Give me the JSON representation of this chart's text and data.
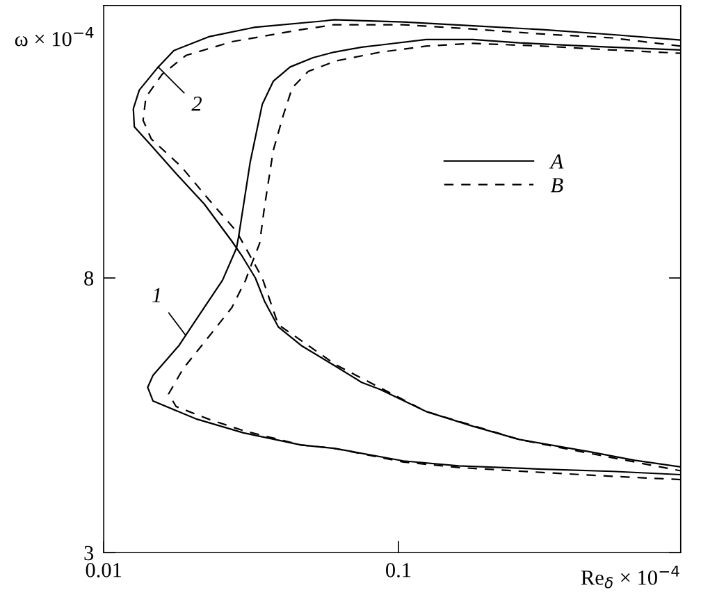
{
  "chart_data": {
    "type": "line",
    "xlabel": "Re$_{δ}$ × 10$^{−4}$",
    "ylabel": "ω × 10$^{−4}$",
    "log": "x",
    "xlim": [
      0.01,
      0.907
    ],
    "xticks": [
      0.01,
      0.1
    ],
    "ylim": [
      3,
      12.96
    ],
    "yticks": [
      3,
      8
    ],
    "grid": false,
    "legend": "right",
    "marker": "none",
    "annotations": [
      {
        "text": "1",
        "x": 0.019,
        "y": 6.95
      },
      {
        "text": "2",
        "x": 0.0153,
        "y": 11.84
      }
    ],
    "series": [
      {
        "name": "A",
        "color": "#000000",
        "line_style": "solid",
        "x": [
          0.907,
          0.53,
          0.308,
          0.16,
          0.104,
          0.0604,
          0.0468,
          0.0298,
          0.0207,
          0.0147,
          0.0141,
          0.0147,
          0.018,
          0.02,
          0.0253,
          0.0282,
          0.0287,
          0.0314,
          0.0345,
          0.0376,
          0.0429,
          0.0513,
          0.0604,
          0.075,
          0.0868,
          0.124,
          0.179,
          0.257,
          0.368,
          0.53,
          0.907
        ],
        "values": [
          4.42,
          4.48,
          4.52,
          4.58,
          4.67,
          4.9,
          4.96,
          5.18,
          5.43,
          5.76,
          6.01,
          6.23,
          6.77,
          7.14,
          7.96,
          8.54,
          8.76,
          10.11,
          11.16,
          11.58,
          11.84,
          12.01,
          12.11,
          12.2,
          12.24,
          12.34,
          12.34,
          12.28,
          12.24,
          12.2,
          12.15
        ]
      },
      {
        "name": "B",
        "color": "#000000",
        "line_style": "dashed",
        "x": [
          0.907,
          0.53,
          0.308,
          0.16,
          0.104,
          0.0604,
          0.0468,
          0.0298,
          0.0227,
          0.0176,
          0.0166,
          0.0186,
          0.0215,
          0.0272,
          0.0303,
          0.0309,
          0.0338,
          0.0351,
          0.0376,
          0.0406,
          0.0436,
          0.0494,
          0.0613,
          0.0868,
          0.124,
          0.179,
          0.308,
          0.53,
          0.907
        ],
        "values": [
          4.33,
          4.39,
          4.46,
          4.55,
          4.65,
          4.9,
          4.96,
          5.22,
          5.43,
          5.66,
          5.89,
          6.35,
          6.77,
          7.46,
          7.96,
          8.09,
          8.63,
          9.29,
          10.32,
          10.95,
          11.46,
          11.76,
          11.95,
          12.11,
          12.22,
          12.27,
          12.22,
          12.15,
          12.09
        ]
      },
      {
        "color": "#000000",
        "line_style": "solid",
        "x": [
          0.907,
          0.53,
          0.308,
          0.179,
          0.104,
          0.0604,
          0.0562,
          0.0323,
          0.0227,
          0.0173,
          0.0153,
          0.0132,
          0.0126,
          0.0127,
          0.0145,
          0.0176,
          0.0219,
          0.0272,
          0.0293,
          0.0327,
          0.0351,
          0.0391,
          0.0468,
          0.0613,
          0.075,
          0.0868,
          0.124,
          0.179,
          0.257,
          0.443,
          0.634,
          0.907
        ],
        "values": [
          12.33,
          12.43,
          12.52,
          12.59,
          12.66,
          12.7,
          12.68,
          12.56,
          12.39,
          12.14,
          11.84,
          11.42,
          11.08,
          10.75,
          10.41,
          9.9,
          9.35,
          8.67,
          8.42,
          8.0,
          7.58,
          7.11,
          6.77,
          6.39,
          6.1,
          5.97,
          5.57,
          5.3,
          5.06,
          4.84,
          4.68,
          4.56
        ]
      },
      {
        "color": "#000000",
        "line_style": "dashed",
        "x": [
          0.907,
          0.53,
          0.308,
          0.179,
          0.104,
          0.0604,
          0.0468,
          0.0272,
          0.019,
          0.0158,
          0.0139,
          0.0136,
          0.0145,
          0.0183,
          0.0227,
          0.0282,
          0.0323,
          0.0345,
          0.0391,
          0.0468,
          0.0613,
          0.124,
          0.257,
          0.443,
          0.907
        ],
        "values": [
          12.22,
          12.37,
          12.44,
          12.53,
          12.61,
          12.61,
          12.52,
          12.3,
          12.05,
          11.71,
          11.29,
          10.87,
          10.53,
          10.03,
          9.43,
          8.85,
          8.28,
          8.0,
          7.15,
          6.86,
          6.42,
          5.57,
          5.06,
          4.81,
          4.49
        ]
      }
    ]
  }
}
